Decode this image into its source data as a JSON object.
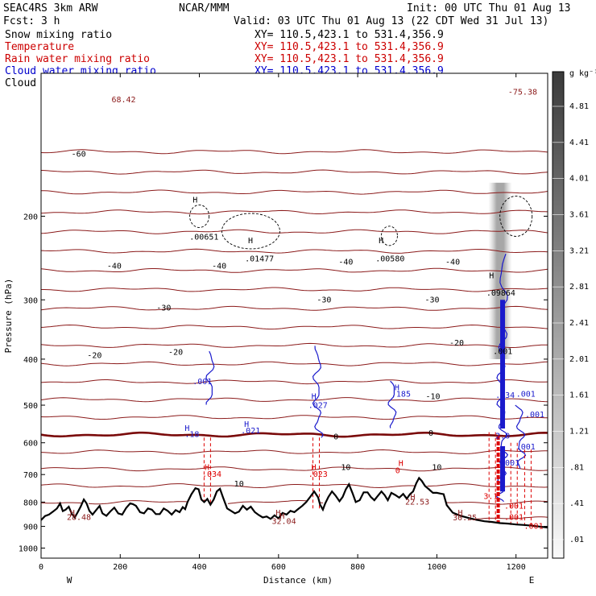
{
  "header": {
    "model": "SEAC4RS  3km ARW",
    "org": "NCAR/MMM",
    "init": "Init: 00 UTC Thu 01 Aug 13",
    "fcst": "Fcst:    3 h",
    "valid": "Valid: 03 UTC Thu 01 Aug 13 (22 CDT Wed 31 Jul 13)"
  },
  "legend": [
    {
      "name": "Snow mixing ratio",
      "color": "#000000",
      "xy": "XY= 110.5,423.1 to 531.4,356.9",
      "xy_color": "#000000"
    },
    {
      "name": "Temperature",
      "color": "#cc0000",
      "xy": "XY= 110.5,423.1 to 531.4,356.9",
      "xy_color": "#cc0000"
    },
    {
      "name": "Rain water mixing ratio",
      "color": "#cc0000",
      "xy": "XY= 110.5,423.1 to 531.4,356.9",
      "xy_color": "#cc0000"
    },
    {
      "name": "Cloud water mixing ratio",
      "color": "#0000cc",
      "xy": "XY= 110.5,423.1 to 531.4,356.9",
      "xy_color": "#0000cc"
    },
    {
      "name": "Cloud ice mixing ratio",
      "color": "#000000",
      "xy": "XY= 110.5,423.1 to 531.4,356.9",
      "xy_color": "#000000"
    }
  ],
  "colors": {
    "temperature": "#8b1a1a",
    "zero_isotherm": "#7a0a0a",
    "rain": "#dd0000",
    "cloud_water": "#1a1acc",
    "snow": "#000000",
    "terrain": "#000000"
  },
  "chart_data": {
    "type": "cross-section",
    "xlabel": "Distance (km)",
    "ylabel": "Pressure (hPa)",
    "xlim": [
      0,
      1280
    ],
    "ylim": [
      1050,
      100
    ],
    "y_scale": "log",
    "x_ticks": [
      0,
      200,
      400,
      600,
      800,
      1000,
      1200
    ],
    "y_ticks": [
      200,
      300,
      400,
      500,
      600,
      700,
      800,
      900,
      1000
    ],
    "direction_labels": {
      "left": "W",
      "right": "E"
    },
    "colorbar": {
      "unit": "g kg⁻¹",
      "labels": [
        "4.81",
        "4.41",
        "4.01",
        "3.61",
        "3.21",
        "2.81",
        "2.41",
        "2.01",
        "1.61",
        "1.21",
        ".81",
        ".41",
        ".01"
      ]
    },
    "temperature_contours": {
      "interval": 5,
      "labeled": [
        {
          "value": "-60",
          "x": 95,
          "p": 148
        },
        {
          "value": "-40",
          "x": 185,
          "p": 255
        },
        {
          "value": "-40",
          "x": 450,
          "p": 255
        },
        {
          "value": "-40",
          "x": 770,
          "p": 250
        },
        {
          "value": "-40",
          "x": 1040,
          "p": 250
        },
        {
          "value": "-30",
          "x": 310,
          "p": 312
        },
        {
          "value": "-30",
          "x": 715,
          "p": 300
        },
        {
          "value": "-30",
          "x": 988,
          "p": 300
        },
        {
          "value": "-20",
          "x": 135,
          "p": 393
        },
        {
          "value": "-20",
          "x": 340,
          "p": 387
        },
        {
          "value": "-20",
          "x": 1050,
          "p": 370
        },
        {
          "value": "-10",
          "x": 990,
          "p": 480
        },
        {
          "value": "0",
          "x": 745,
          "p": 583
        },
        {
          "value": "0",
          "x": 985,
          "p": 573
        },
        {
          "value": "10",
          "x": 500,
          "p": 733
        },
        {
          "value": "10",
          "x": 770,
          "p": 677
        },
        {
          "value": "10",
          "x": 1000,
          "p": 677
        }
      ]
    },
    "zero_isotherm_p": 577,
    "terrain": [
      [
        0,
        873
      ],
      [
        10,
        856
      ],
      [
        20,
        850
      ],
      [
        30,
        838
      ],
      [
        40,
        825
      ],
      [
        48,
        805
      ],
      [
        55,
        836
      ],
      [
        62,
        830
      ],
      [
        70,
        818
      ],
      [
        78,
        848
      ],
      [
        85,
        862
      ],
      [
        92,
        842
      ],
      [
        100,
        818
      ],
      [
        108,
        790
      ],
      [
        115,
        805
      ],
      [
        122,
        835
      ],
      [
        130,
        850
      ],
      [
        140,
        830
      ],
      [
        148,
        815
      ],
      [
        155,
        845
      ],
      [
        165,
        855
      ],
      [
        175,
        837
      ],
      [
        185,
        822
      ],
      [
        195,
        845
      ],
      [
        205,
        850
      ],
      [
        215,
        823
      ],
      [
        225,
        805
      ],
      [
        232,
        808
      ],
      [
        240,
        815
      ],
      [
        250,
        840
      ],
      [
        260,
        845
      ],
      [
        270,
        825
      ],
      [
        280,
        830
      ],
      [
        290,
        848
      ],
      [
        300,
        848
      ],
      [
        310,
        825
      ],
      [
        320,
        835
      ],
      [
        330,
        850
      ],
      [
        340,
        832
      ],
      [
        350,
        840
      ],
      [
        358,
        820
      ],
      [
        364,
        828
      ],
      [
        370,
        800
      ],
      [
        380,
        770
      ],
      [
        390,
        748
      ],
      [
        398,
        752
      ],
      [
        405,
        790
      ],
      [
        412,
        800
      ],
      [
        420,
        788
      ],
      [
        428,
        810
      ],
      [
        436,
        790
      ],
      [
        444,
        760
      ],
      [
        452,
        750
      ],
      [
        460,
        783
      ],
      [
        470,
        825
      ],
      [
        480,
        835
      ],
      [
        490,
        845
      ],
      [
        500,
        838
      ],
      [
        510,
        815
      ],
      [
        520,
        830
      ],
      [
        530,
        818
      ],
      [
        540,
        840
      ],
      [
        550,
        852
      ],
      [
        560,
        862
      ],
      [
        570,
        858
      ],
      [
        580,
        868
      ],
      [
        590,
        853
      ],
      [
        600,
        866
      ],
      [
        610,
        843
      ],
      [
        620,
        850
      ],
      [
        630,
        835
      ],
      [
        640,
        840
      ],
      [
        650,
        827
      ],
      [
        660,
        815
      ],
      [
        670,
        800
      ],
      [
        680,
        780
      ],
      [
        690,
        760
      ],
      [
        700,
        782
      ],
      [
        705,
        810
      ],
      [
        712,
        830
      ],
      [
        718,
        805
      ],
      [
        726,
        780
      ],
      [
        735,
        760
      ],
      [
        744,
        775
      ],
      [
        754,
        797
      ],
      [
        762,
        780
      ],
      [
        770,
        752
      ],
      [
        778,
        734
      ],
      [
        787,
        766
      ],
      [
        795,
        800
      ],
      [
        805,
        793
      ],
      [
        815,
        763
      ],
      [
        825,
        763
      ],
      [
        833,
        780
      ],
      [
        842,
        793
      ],
      [
        850,
        778
      ],
      [
        860,
        760
      ],
      [
        868,
        773
      ],
      [
        876,
        793
      ],
      [
        885,
        765
      ],
      [
        895,
        773
      ],
      [
        905,
        783
      ],
      [
        915,
        769
      ],
      [
        924,
        787
      ],
      [
        932,
        770
      ],
      [
        940,
        760
      ],
      [
        948,
        730
      ],
      [
        955,
        712
      ],
      [
        962,
        722
      ],
      [
        970,
        740
      ],
      [
        980,
        752
      ],
      [
        990,
        765
      ],
      [
        1000,
        765
      ],
      [
        1010,
        768
      ],
      [
        1017,
        770
      ],
      [
        1025,
        812
      ],
      [
        1040,
        842
      ],
      [
        1060,
        855
      ],
      [
        1080,
        864
      ],
      [
        1100,
        872
      ],
      [
        1120,
        878
      ],
      [
        1140,
        881
      ],
      [
        1160,
        886
      ],
      [
        1180,
        888
      ],
      [
        1200,
        892
      ],
      [
        1220,
        894
      ],
      [
        1240,
        897
      ],
      [
        1260,
        901
      ],
      [
        1280,
        905
      ]
    ],
    "annotations": [
      {
        "text": "H",
        "x": 383,
        "p": 187,
        "color": "#000000"
      },
      {
        "text": ".00651",
        "x": 375,
        "p": 224,
        "color": "#000000"
      },
      {
        "text": "H",
        "x": 523,
        "p": 228,
        "color": "#000000"
      },
      {
        "text": ".01477",
        "x": 515,
        "p": 249,
        "color": "#000000"
      },
      {
        "text": "H",
        "x": 853,
        "p": 228,
        "color": "#000000"
      },
      {
        "text": ".00580",
        "x": 845,
        "p": 249,
        "color": "#000000"
      },
      {
        "text": "H",
        "x": 1132,
        "p": 270,
        "color": "#000000"
      },
      {
        "text": ".09864",
        "x": 1125,
        "p": 294,
        "color": "#000000"
      },
      {
        "text": ".001",
        "x": 1142,
        "p": 390,
        "color": "#000000"
      },
      {
        "text": "68.42",
        "x": 178,
        "p": 115,
        "color": "#8b1a1a"
      },
      {
        "text": "-75.38",
        "x": 1180,
        "p": 111,
        "color": "#8b1a1a"
      },
      {
        "text": ".001",
        "x": 383,
        "p": 452,
        "color": "#1a1acc"
      },
      {
        "text": "H",
        "x": 683,
        "p": 485,
        "color": "#1a1acc"
      },
      {
        "text": ".027",
        "x": 675,
        "p": 507,
        "color": "#1a1acc"
      },
      {
        "text": "H",
        "x": 893,
        "p": 465,
        "color": "#1a1acc"
      },
      {
        "text": ".185",
        "x": 885,
        "p": 480,
        "color": "#1a1acc"
      },
      {
        "text": "H",
        "x": 513,
        "p": 556,
        "color": "#1a1acc"
      },
      {
        "text": ".021",
        "x": 505,
        "p": 573,
        "color": "#1a1acc"
      },
      {
        "text": "H",
        "x": 363,
        "p": 566,
        "color": "#1a1acc"
      },
      {
        "text": ".18",
        "x": 363,
        "p": 583,
        "color": "#1a1acc"
      },
      {
        "text": ".034",
        "x": 1148,
        "p": 483,
        "color": "#1a1acc"
      },
      {
        "text": ".001",
        "x": 1200,
        "p": 480,
        "color": "#1a1acc"
      },
      {
        "text": ".001",
        "x": 1223,
        "p": 530,
        "color": "#1a1acc"
      },
      {
        "text": ".001",
        "x": 1200,
        "p": 620,
        "color": "#1a1acc"
      },
      {
        "text": ".001",
        "x": 1160,
        "p": 670,
        "color": "#1a1acc"
      },
      {
        "text": "2.0",
        "x": 1148,
        "p": 588,
        "color": "#1a1acc"
      },
      {
        "text": "H",
        "x": 413,
        "p": 685,
        "color": "#dd0000"
      },
      {
        "text": ".034",
        "x": 407,
        "p": 708,
        "color": "#dd0000"
      },
      {
        "text": "H",
        "x": 683,
        "p": 685,
        "color": "#dd0000"
      },
      {
        "text": ".023",
        "x": 675,
        "p": 708,
        "color": "#dd0000"
      },
      {
        "text": "H",
        "x": 903,
        "p": 671,
        "color": "#dd0000"
      },
      {
        "text": "0",
        "x": 895,
        "p": 695,
        "color": "#dd0000"
      },
      {
        "text": "3.1",
        "x": 1118,
        "p": 788,
        "color": "#dd0000"
      },
      {
        "text": ".001",
        "x": 1170,
        "p": 826,
        "color": "#dd0000"
      },
      {
        "text": ".001",
        "x": 1170,
        "p": 872,
        "color": "#dd0000"
      },
      {
        "text": ".001",
        "x": 1220,
        "p": 910,
        "color": "#dd0000"
      },
      {
        "text": "H",
        "x": 73,
        "p": 854,
        "color": "#8b1a1a"
      },
      {
        "text": "28.48",
        "x": 65,
        "p": 873,
        "color": "#8b1a1a"
      },
      {
        "text": "H",
        "x": 593,
        "p": 853,
        "color": "#8b1a1a"
      },
      {
        "text": "H",
        "x": 603,
        "p": 867,
        "color": "#8b1a1a"
      },
      {
        "text": "32.04",
        "x": 583,
        "p": 889,
        "color": "#8b1a1a"
      },
      {
        "text": "H",
        "x": 933,
        "p": 791,
        "color": "#8b1a1a"
      },
      {
        "text": "22.53",
        "x": 920,
        "p": 810,
        "color": "#8b1a1a"
      },
      {
        "text": "H",
        "x": 1053,
        "p": 853,
        "color": "#8b1a1a"
      },
      {
        "text": "30.25",
        "x": 1040,
        "p": 874,
        "color": "#8b1a1a"
      }
    ]
  }
}
